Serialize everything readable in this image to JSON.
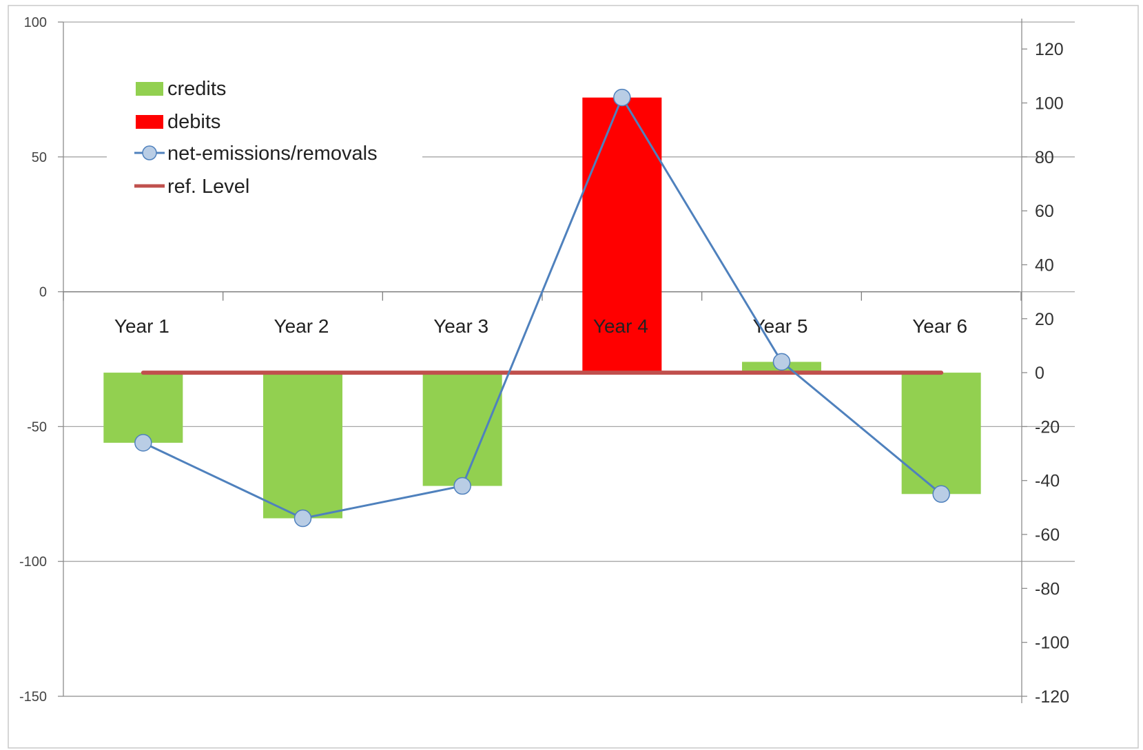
{
  "chart_data": {
    "type": "bar",
    "categories": [
      "Year 1",
      "Year 2",
      "Year 3",
      "Year 4",
      "Year 5",
      "Year 6"
    ],
    "series": [
      {
        "name": "credits",
        "kind": "bar",
        "axis": "left",
        "color": "#92d050",
        "values": [
          -56,
          -84,
          -72,
          null,
          -26,
          -75
        ]
      },
      {
        "name": "debits",
        "kind": "bar",
        "axis": "left",
        "color": "#ff0000",
        "values": [
          null,
          null,
          null,
          72,
          null,
          null
        ]
      },
      {
        "name": "net-emissions/removals",
        "kind": "line",
        "axis": "left",
        "color": "#4f81bd",
        "marker_fill": "#b9cde5",
        "values": [
          -56,
          -84,
          -72,
          72,
          -26,
          -75
        ]
      },
      {
        "name": "ref. Level",
        "kind": "line",
        "axis": "right",
        "color": "#c0504d",
        "values": [
          0,
          0,
          0,
          0,
          0,
          0
        ]
      }
    ],
    "y_left": {
      "ylim": [
        -150,
        100
      ],
      "ticks": [
        100,
        50,
        0,
        -50,
        -100,
        -150
      ]
    },
    "y_right": {
      "ylim": [
        -120,
        130
      ],
      "ticks": [
        120,
        100,
        80,
        60,
        40,
        20,
        0,
        -20,
        -40,
        -60,
        -80,
        -100,
        -120
      ]
    },
    "grid": true,
    "legend_position": "top-left",
    "title": "",
    "xlabel": "",
    "ylabel": ""
  }
}
